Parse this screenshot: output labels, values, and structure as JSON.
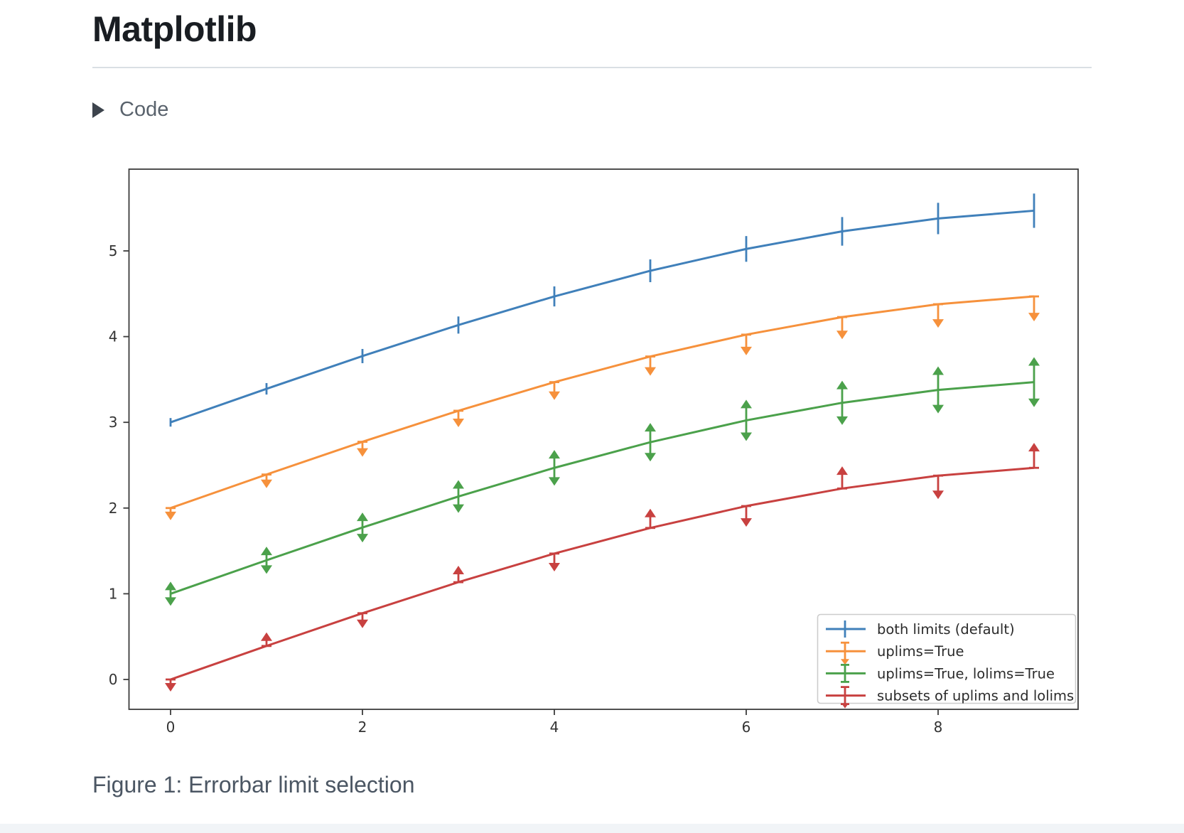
{
  "page": {
    "title": "Matplotlib",
    "code_toggle": {
      "label": "Code",
      "icon": "triangle-right-icon"
    },
    "caption": "Figure 1: Errorbar limit selection"
  },
  "chart_data": {
    "type": "line",
    "subtype": "errorbar-with-limits",
    "title": "",
    "xlabel": "",
    "ylabel": "",
    "grid": false,
    "x": [
      0,
      1,
      2,
      3,
      4,
      5,
      6,
      7,
      8,
      9
    ],
    "yerr": [
      0.05,
      0.067,
      0.083,
      0.1,
      0.117,
      0.133,
      0.15,
      0.167,
      0.183,
      0.2
    ],
    "xticks": [
      0,
      2,
      4,
      6,
      8
    ],
    "yticks": [
      0,
      1,
      2,
      3,
      4,
      5
    ],
    "xlim": [
      -0.45,
      9.45
    ],
    "ylim": [
      -0.35,
      5.96
    ],
    "legend_position": "lower right",
    "series": [
      {
        "name": "both limits (default)",
        "color": "#4080ba",
        "limit_style": "both",
        "values": [
          3.0,
          3.391,
          3.773,
          4.135,
          4.469,
          4.768,
          5.023,
          5.228,
          5.378,
          5.469
        ]
      },
      {
        "name": "uplims=True",
        "color": "#f6913c",
        "limit_style": "uplims",
        "values": [
          2.0,
          2.391,
          2.773,
          3.135,
          3.469,
          3.768,
          4.023,
          4.228,
          4.378,
          4.469
        ]
      },
      {
        "name": "uplims=True, lolims=True",
        "color": "#4ba14b",
        "limit_style": "uplims_lolims",
        "values": [
          1.0,
          1.391,
          1.773,
          2.135,
          2.469,
          2.768,
          3.023,
          3.228,
          3.378,
          3.469
        ]
      },
      {
        "name": "subsets of uplims and lolims",
        "color": "#c84140",
        "limit_style": "alternating",
        "uplims_pattern": [
          true,
          false,
          true,
          false,
          true,
          false,
          true,
          false,
          true,
          false
        ],
        "values": [
          0.0,
          0.391,
          0.773,
          1.135,
          1.469,
          1.768,
          2.023,
          2.228,
          2.378,
          2.469
        ]
      }
    ]
  }
}
